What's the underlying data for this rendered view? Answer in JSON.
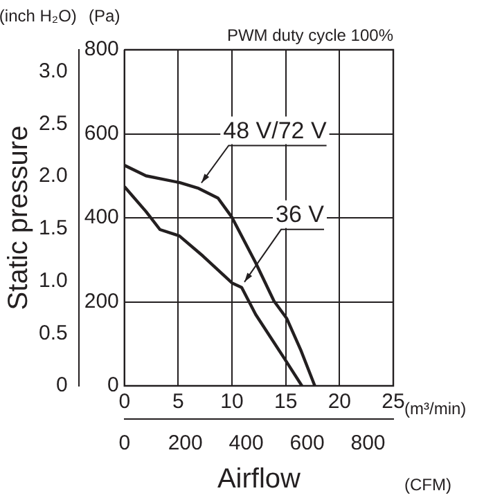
{
  "chart_data": {
    "type": "line",
    "subtitle": "PWM duty cycle 100%",
    "xlabel": "Airflow",
    "y2label": "Static pressure",
    "annotations": [
      "(inch H₂O)",
      "(Pa)",
      "(m³/min)",
      "(CFM)"
    ],
    "xlim": [
      0,
      25
    ],
    "xticks": [
      0,
      5,
      10,
      15,
      20,
      25
    ],
    "x2lim": [
      0,
      883
    ],
    "x2ticks": [
      0,
      200,
      400,
      600,
      800
    ],
    "ylim": [
      0,
      800
    ],
    "yticks": [
      0,
      200,
      400,
      600,
      800
    ],
    "y2lim": [
      0,
      3.21
    ],
    "y2ticks": [
      0,
      0.5,
      {
        "value": 1,
        "label": "1.0"
      },
      1.5,
      {
        "value": 2,
        "label": "2.0"
      },
      2.5,
      {
        "value": 3,
        "label": "3.0"
      }
    ],
    "grid": true,
    "legend": false,
    "marker": "none",
    "line_style": "solid",
    "series": [
      {
        "name": "48 V/72 V",
        "color": "#231f20",
        "x": [
          0,
          2,
          5.1,
          6.9,
          8.7,
          10,
          12.2,
          13.9,
          15.1,
          16.4,
          17.7
        ],
        "values": [
          525,
          500,
          484,
          470,
          447,
          401,
          293,
          202,
          160,
          85,
          0
        ]
      },
      {
        "name": "36 V",
        "color": "#231f20",
        "x": [
          0,
          2,
          3.3,
          5.1,
          7.3,
          10,
          10.9,
          12.2,
          14.9,
          16.5
        ],
        "values": [
          474,
          415,
          372,
          357,
          309,
          245,
          234,
          170,
          64,
          0
        ]
      }
    ]
  }
}
